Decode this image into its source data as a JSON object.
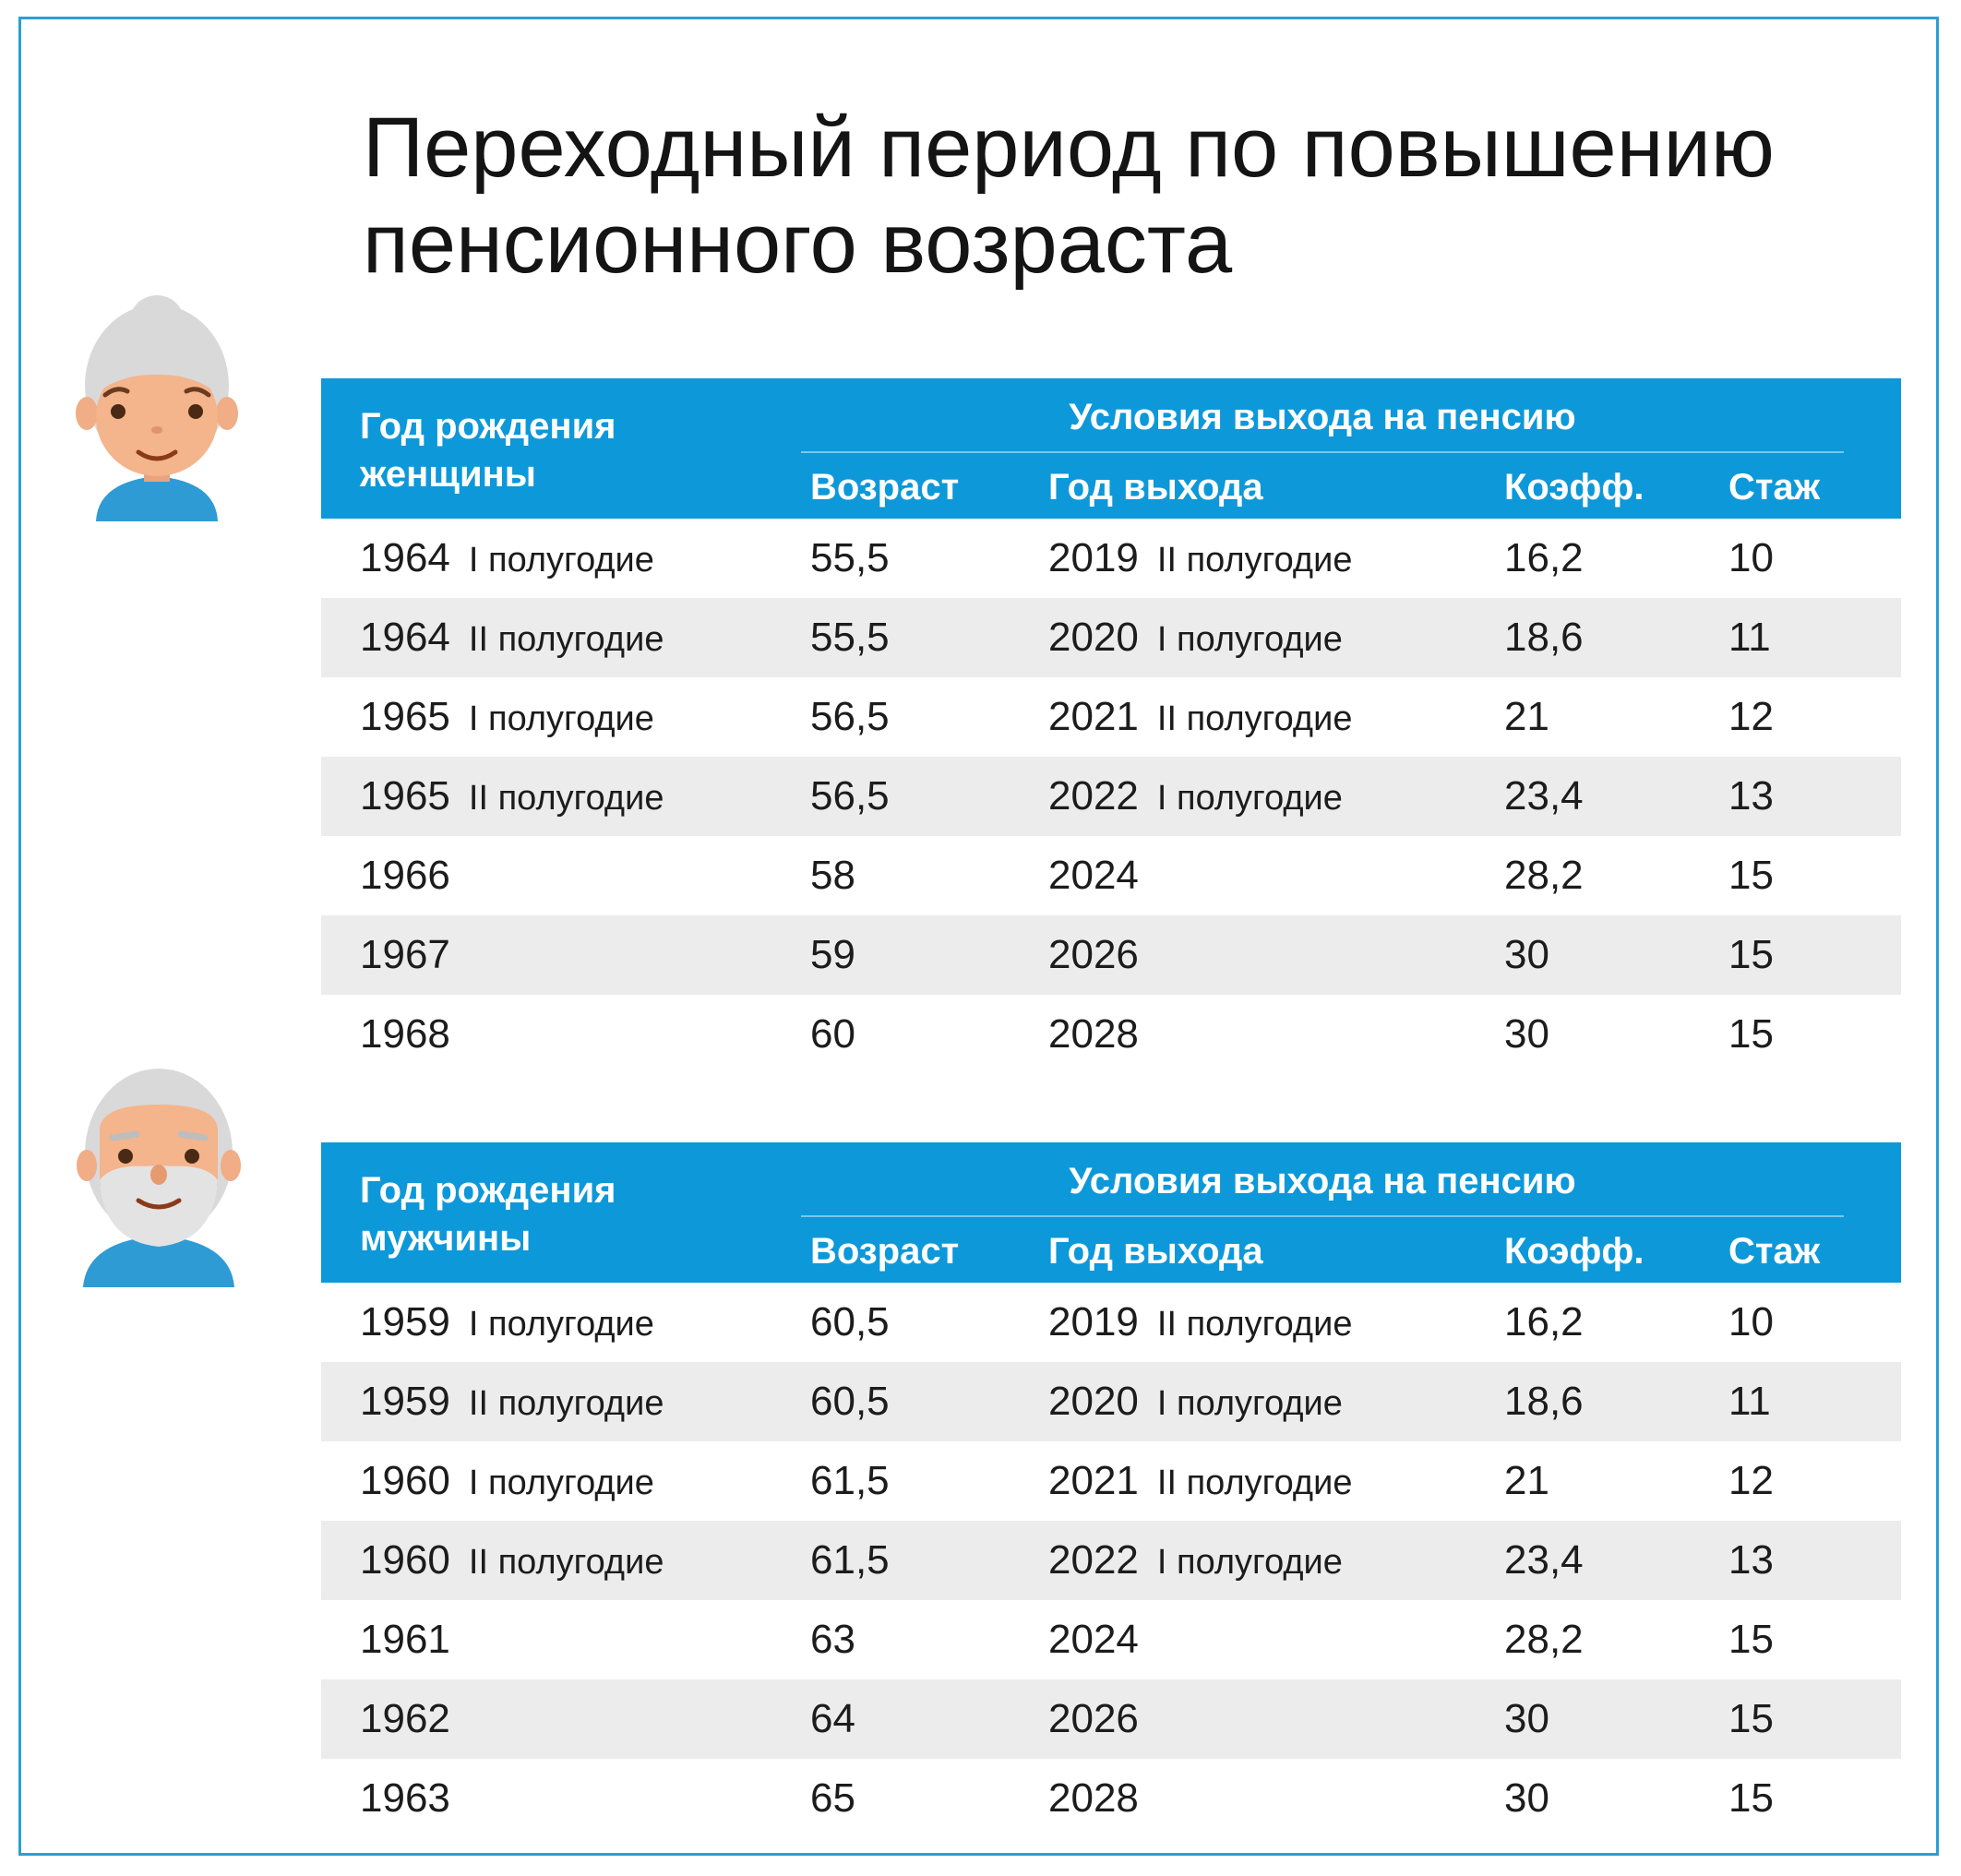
{
  "title_lines": [
    "Переходный период по повышению",
    "пенсионного возраста"
  ],
  "colors": {
    "accent": "#0d98d9",
    "frame": "#2b9fd5",
    "row_alt": "#ececec"
  },
  "women_table": {
    "header": {
      "birth_line1": "Год рождения",
      "birth_line2": "женщины",
      "group": "Условия выхода на пенсию",
      "age": "Возраст",
      "year": "Год выхода",
      "coef": "Коэфф.",
      "exp": "Стаж"
    },
    "rows": [
      {
        "birth": "1964",
        "birth_half": "I полугодие",
        "age": "55,5",
        "year": "2019",
        "year_half": "II полугодие",
        "coef": "16,2",
        "exp": "10"
      },
      {
        "birth": "1964",
        "birth_half": "II полугодие",
        "age": "55,5",
        "year": "2020",
        "year_half": "I полугодие",
        "coef": "18,6",
        "exp": "11"
      },
      {
        "birth": "1965",
        "birth_half": "I полугодие",
        "age": "56,5",
        "year": "2021",
        "year_half": "II полугодие",
        "coef": "21",
        "exp": "12"
      },
      {
        "birth": "1965",
        "birth_half": "II полугодие",
        "age": "56,5",
        "year": "2022",
        "year_half": "I полугодие",
        "coef": "23,4",
        "exp": "13"
      },
      {
        "birth": "1966",
        "birth_half": "",
        "age": "58",
        "year": "2024",
        "year_half": "",
        "coef": "28,2",
        "exp": "15"
      },
      {
        "birth": "1967",
        "birth_half": "",
        "age": "59",
        "year": "2026",
        "year_half": "",
        "coef": "30",
        "exp": "15"
      },
      {
        "birth": "1968",
        "birth_half": "",
        "age": "60",
        "year": "2028",
        "year_half": "",
        "coef": "30",
        "exp": "15"
      }
    ]
  },
  "men_table": {
    "header": {
      "birth_line1": "Год рождения",
      "birth_line2": "мужчины",
      "group": "Условия выхода на пенсию",
      "age": "Возраст",
      "year": "Год выхода",
      "coef": "Коэфф.",
      "exp": "Стаж"
    },
    "rows": [
      {
        "birth": "1959",
        "birth_half": "I полугодие",
        "age": "60,5",
        "year": "2019",
        "year_half": "II полугодие",
        "coef": "16,2",
        "exp": "10"
      },
      {
        "birth": "1959",
        "birth_half": "II полугодие",
        "age": "60,5",
        "year": "2020",
        "year_half": "I полугодие",
        "coef": "18,6",
        "exp": "11"
      },
      {
        "birth": "1960",
        "birth_half": "I полугодие",
        "age": "61,5",
        "year": "2021",
        "year_half": "II полугодие",
        "coef": "21",
        "exp": "12"
      },
      {
        "birth": "1960",
        "birth_half": "II полугодие",
        "age": "61,5",
        "year": "2022",
        "year_half": "I полугодие",
        "coef": "23,4",
        "exp": "13"
      },
      {
        "birth": "1961",
        "birth_half": "",
        "age": "63",
        "year": "2024",
        "year_half": "",
        "coef": "28,2",
        "exp": "15"
      },
      {
        "birth": "1962",
        "birth_half": "",
        "age": "64",
        "year": "2026",
        "year_half": "",
        "coef": "30",
        "exp": "15"
      },
      {
        "birth": "1963",
        "birth_half": "",
        "age": "65",
        "year": "2028",
        "year_half": "",
        "coef": "30",
        "exp": "15"
      }
    ]
  }
}
